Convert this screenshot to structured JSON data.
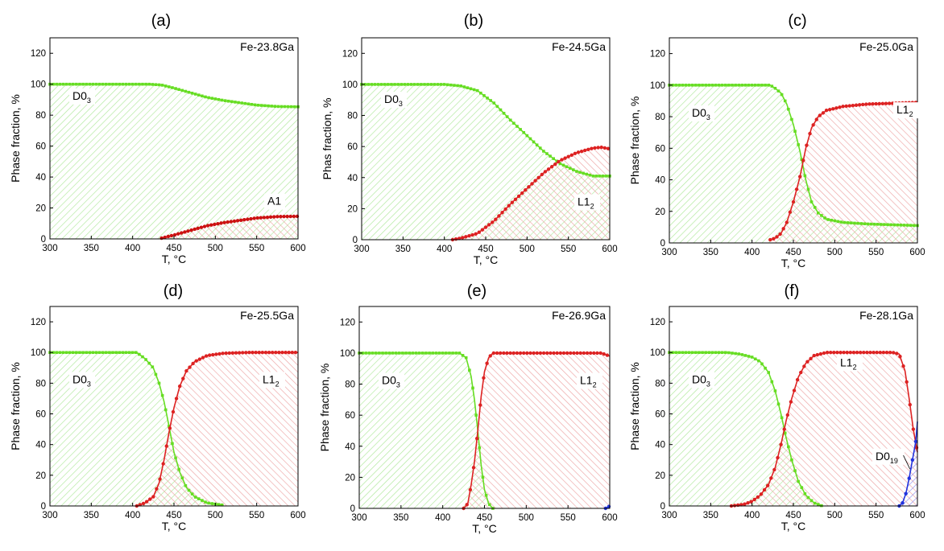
{
  "colors": {
    "d03": "#66dd22",
    "l12": "#dd2222",
    "a1": "#cc1111",
    "d019": "#2233dd",
    "d03_fill": "#aee89a",
    "l12_fill": "#eda4a4",
    "d019_fill": "#8c8cee",
    "overlap": "#a89a6a"
  },
  "chart_data": [
    {
      "type": "area",
      "title": "(a)",
      "composition": "Fe-23.8Ga",
      "xlabel": "T, °C",
      "ylabel": "Phase fraction, %",
      "xlim": [
        300,
        600
      ],
      "ylim": [
        0,
        130
      ],
      "xticks": [
        "300",
        "350",
        "400",
        "450",
        "500",
        "550",
        "600"
      ],
      "yticks": [
        "0",
        "20",
        "40",
        "60",
        "80",
        "100",
        "120"
      ],
      "phases": [
        {
          "name": "D0",
          "sub": "3",
          "color_key": "d03",
          "points": [
            [
              300,
              100
            ],
            [
              420,
              100
            ],
            [
              435,
              99.5
            ],
            [
              450,
              97.5
            ],
            [
              470,
              94.5
            ],
            [
              490,
              91.5
            ],
            [
              510,
              89.5
            ],
            [
              530,
              88
            ],
            [
              550,
              86.5
            ],
            [
              575,
              85.6
            ],
            [
              600,
              85.4
            ]
          ]
        },
        {
          "name": "A1",
          "sub": "",
          "color_key": "a1",
          "points": [
            [
              435,
              0.5
            ],
            [
              450,
              2.5
            ],
            [
              470,
              5.5
            ],
            [
              490,
              8.5
            ],
            [
              510,
              10.5
            ],
            [
              530,
              12
            ],
            [
              550,
              13.5
            ],
            [
              575,
              14.4
            ],
            [
              600,
              14.6
            ]
          ]
        }
      ]
    },
    {
      "type": "area",
      "title": "(b)",
      "composition": "Fe-24.5Ga",
      "xlabel": "T, °C",
      "ylabel": "Phas fraction, %",
      "xlim": [
        300,
        600
      ],
      "ylim": [
        0,
        130
      ],
      "xticks": [
        "300",
        "350",
        "400",
        "450",
        "500",
        "550",
        "600"
      ],
      "yticks": [
        "0",
        "20",
        "40",
        "60",
        "80",
        "100",
        "120"
      ],
      "phases": [
        {
          "name": "D0",
          "sub": "3",
          "color_key": "d03",
          "points": [
            [
              300,
              100
            ],
            [
              400,
              100
            ],
            [
              420,
              99
            ],
            [
              440,
              96
            ],
            [
              460,
              88
            ],
            [
              480,
              77
            ],
            [
              500,
              67
            ],
            [
              520,
              57
            ],
            [
              540,
              49
            ],
            [
              560,
              44
            ],
            [
              580,
              41
            ],
            [
              600,
              41
            ]
          ]
        },
        {
          "name": "L1",
          "sub": "2",
          "color_key": "l12",
          "points": [
            [
              410,
              0
            ],
            [
              420,
              1
            ],
            [
              440,
              4
            ],
            [
              460,
              12
            ],
            [
              480,
              23
            ],
            [
              500,
              33
            ],
            [
              520,
              43
            ],
            [
              540,
              51
            ],
            [
              560,
              56
            ],
            [
              580,
              59
            ],
            [
              590,
              59.5
            ],
            [
              600,
              58.5
            ]
          ]
        }
      ]
    },
    {
      "type": "area",
      "title": "(c)",
      "composition": "Fe-25.0Ga",
      "xlabel": "T, °C",
      "ylabel": "Phase fraction, %",
      "xlim": [
        300,
        600
      ],
      "ylim": [
        0,
        130
      ],
      "xticks": [
        "300",
        "350",
        "400",
        "450",
        "500",
        "550",
        "600"
      ],
      "yticks": [
        "0",
        "20",
        "40",
        "60",
        "80",
        "100",
        "120"
      ],
      "phases": [
        {
          "name": "D0",
          "sub": "3",
          "color_key": "d03",
          "points": [
            [
              300,
              100
            ],
            [
              422,
              100
            ],
            [
              428,
              98
            ],
            [
              435,
              95
            ],
            [
              442,
              88
            ],
            [
              450,
              75
            ],
            [
              458,
              58
            ],
            [
              465,
              40
            ],
            [
              472,
              26
            ],
            [
              480,
              19
            ],
            [
              490,
              15
            ],
            [
              510,
              13
            ],
            [
              540,
              12
            ],
            [
              570,
              11.5
            ],
            [
              600,
              11
            ]
          ]
        },
        {
          "name": "L1",
          "sub": "2",
          "color_key": "l12",
          "points": [
            [
              422,
              2
            ],
            [
              428,
              3
            ],
            [
              435,
              6
            ],
            [
              442,
              13
            ],
            [
              450,
              26
            ],
            [
              458,
              42
            ],
            [
              465,
              60
            ],
            [
              472,
              73
            ],
            [
              480,
              80
            ],
            [
              490,
              84
            ],
            [
              510,
              86.5
            ],
            [
              540,
              88
            ],
            [
              570,
              88.5
            ],
            [
              600,
              89
            ]
          ]
        }
      ]
    },
    {
      "type": "area",
      "title": "(d)",
      "composition": "Fe-25.5Ga",
      "xlabel": "T, °C",
      "ylabel": "Phase fraction, %",
      "xlim": [
        300,
        600
      ],
      "ylim": [
        0,
        130
      ],
      "xticks": [
        "300",
        "350",
        "400",
        "450",
        "500",
        "550",
        "600"
      ],
      "yticks": [
        "0",
        "20",
        "40",
        "60",
        "80",
        "100",
        "120"
      ],
      "phases": [
        {
          "name": "D0",
          "sub": "3",
          "color_key": "d03",
          "points": [
            [
              300,
              100
            ],
            [
              405,
              100
            ],
            [
              415,
              96
            ],
            [
              425,
              90
            ],
            [
              432,
              80
            ],
            [
              438,
              68
            ],
            [
              444,
              52
            ],
            [
              450,
              35
            ],
            [
              457,
              22
            ],
            [
              465,
              12
            ],
            [
              475,
              6
            ],
            [
              490,
              2
            ],
            [
              510,
              0.5
            ]
          ]
        },
        {
          "name": "L1",
          "sub": "2",
          "color_key": "l12",
          "points": [
            [
              405,
              0
            ],
            [
              415,
              2
            ],
            [
              425,
              6
            ],
            [
              432,
              15
            ],
            [
              438,
              30
            ],
            [
              444,
              48
            ],
            [
              450,
              64
            ],
            [
              457,
              78
            ],
            [
              465,
              88
            ],
            [
              475,
              94
            ],
            [
              490,
              98
            ],
            [
              510,
              99.5
            ],
            [
              540,
              100
            ],
            [
              600,
              100
            ]
          ]
        }
      ]
    },
    {
      "type": "area",
      "title": "(e)",
      "composition": "Fe-26.9Ga",
      "xlabel": "T, °C",
      "ylabel": "Phase fraction, %",
      "xlim": [
        300,
        600
      ],
      "ylim": [
        0,
        130
      ],
      "xticks": [
        "300",
        "350",
        "400",
        "450",
        "500",
        "550",
        "600"
      ],
      "yticks": [
        "0",
        "20",
        "40",
        "60",
        "80",
        "100",
        "120"
      ],
      "phases": [
        {
          "name": "D0",
          "sub": "3",
          "color_key": "d03",
          "points": [
            [
              300,
              100
            ],
            [
              420,
              100
            ],
            [
              428,
              97
            ],
            [
              434,
              85
            ],
            [
              438,
              70
            ],
            [
              442,
              50
            ],
            [
              446,
              28
            ],
            [
              450,
              12
            ],
            [
              455,
              3
            ],
            [
              460,
              0
            ]
          ]
        },
        {
          "name": "L1",
          "sub": "2",
          "color_key": "l12",
          "points": [
            [
              425,
              0
            ],
            [
              430,
              3
            ],
            [
              434,
              15
            ],
            [
              438,
              30
            ],
            [
              442,
              50
            ],
            [
              446,
              72
            ],
            [
              450,
              88
            ],
            [
              455,
              97
            ],
            [
              460,
              100
            ],
            [
              590,
              100
            ],
            [
              600,
              98
            ]
          ]
        },
        {
          "name": "",
          "sub": "",
          "color_key": "d019",
          "points": [
            [
              595,
              0
            ],
            [
              600,
              1.5
            ]
          ]
        }
      ]
    },
    {
      "type": "area",
      "title": "(f)",
      "composition": "Fe-28.1Ga",
      "xlabel": "T, °C",
      "ylabel": "Phase fraction, %",
      "xlim": [
        300,
        600
      ],
      "ylim": [
        0,
        130
      ],
      "xticks": [
        "300",
        "350",
        "400",
        "450",
        "500",
        "550",
        "600"
      ],
      "yticks": [
        "0",
        "20",
        "40",
        "60",
        "80",
        "100",
        "120"
      ],
      "phases": [
        {
          "name": "D0",
          "sub": "3",
          "color_key": "d03",
          "points": [
            [
              300,
              100
            ],
            [
              370,
              100
            ],
            [
              385,
              99
            ],
            [
              400,
              97
            ],
            [
              410,
              94
            ],
            [
              420,
              87
            ],
            [
              428,
              75
            ],
            [
              435,
              60
            ],
            [
              441,
              45
            ],
            [
              448,
              30
            ],
            [
              456,
              16
            ],
            [
              465,
              7
            ],
            [
              475,
              2
            ],
            [
              485,
              0
            ]
          ]
        },
        {
          "name": "L1",
          "sub": "2",
          "color_key": "l12",
          "points": [
            [
              375,
              0
            ],
            [
              390,
              1
            ],
            [
              400,
              3
            ],
            [
              410,
              7
            ],
            [
              420,
              14
            ],
            [
              428,
              25
            ],
            [
              435,
              40
            ],
            [
              441,
              55
            ],
            [
              448,
              70
            ],
            [
              456,
              84
            ],
            [
              465,
              93
            ],
            [
              475,
              98
            ],
            [
              490,
              100
            ],
            [
              570,
              100
            ],
            [
              578,
              99
            ],
            [
              585,
              88
            ],
            [
              590,
              70
            ],
            [
              595,
              50
            ],
            [
              600,
              35
            ]
          ]
        },
        {
          "name": "D0",
          "sub": "19",
          "color_key": "d019",
          "points": [
            [
              578,
              0
            ],
            [
              582,
              2
            ],
            [
              586,
              8
            ],
            [
              590,
              18
            ],
            [
              594,
              30
            ],
            [
              598,
              42
            ],
            [
              600,
              55
            ]
          ]
        }
      ]
    }
  ]
}
